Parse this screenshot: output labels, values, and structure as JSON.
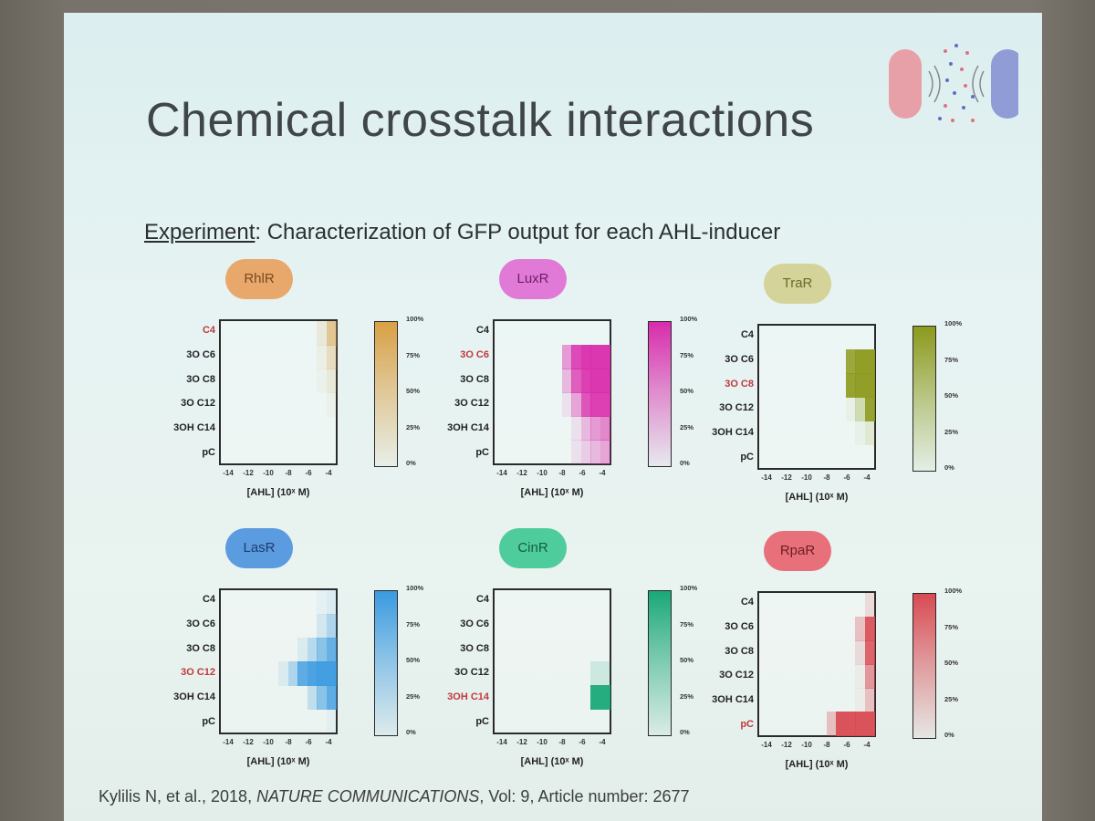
{
  "slide": {
    "title": "Chemical crosstalk interactions",
    "subtitle_prefix": "Experiment",
    "subtitle_rest": ": Characterization of GFP output for each AHL-inducer",
    "citation_authors": "Kylilis N, et al., 2018, ",
    "citation_journal": "NATURE COMMUNICATIONS",
    "citation_rest": ", Vol: 9, Article number: 2677"
  },
  "colors": {
    "highlight_label": "#c0393b",
    "normal_label": "#222222"
  },
  "panels": [
    {
      "receptor": "RhlR",
      "badge_color": "#e9a86b",
      "label_color": "#7a4a1c",
      "heat_color": "#d9a045",
      "highlight_row": 0,
      "rows": [
        "C4",
        "3O C6",
        "3O C8",
        "3O C12",
        "3OH C14",
        "pC"
      ],
      "x_ticks": [
        "-14",
        "-12",
        "-10",
        "-8",
        "-6",
        "-4"
      ],
      "x_label": "[AHL] (10ˣ M)",
      "cb_ticks": [
        "100%",
        "75%",
        "50%",
        "25%",
        "0%"
      ],
      "matrix": [
        [
          0,
          0,
          0,
          0,
          0,
          0,
          0,
          0,
          0,
          0,
          0.15,
          0.55
        ],
        [
          0,
          0,
          0,
          0,
          0,
          0,
          0,
          0,
          0,
          0,
          0.08,
          0.3
        ],
        [
          0,
          0,
          0,
          0,
          0,
          0,
          0,
          0,
          0,
          0,
          0.05,
          0.15
        ],
        [
          0,
          0,
          0,
          0,
          0,
          0,
          0,
          0,
          0,
          0,
          0,
          0.05
        ],
        [
          0,
          0,
          0,
          0,
          0,
          0,
          0,
          0,
          0,
          0,
          0,
          0
        ],
        [
          0,
          0,
          0,
          0,
          0,
          0,
          0,
          0,
          0,
          0,
          0,
          0
        ]
      ]
    },
    {
      "receptor": "LuxR",
      "badge_color": "#e07ad6",
      "label_color": "#6e1e66",
      "heat_color": "#d92cac",
      "highlight_row": 1,
      "rows": [
        "C4",
        "3O C6",
        "3O C8",
        "3O C12",
        "3OH C14",
        "pC"
      ],
      "x_ticks": [
        "-14",
        "-12",
        "-10",
        "-8",
        "-6",
        "-4"
      ],
      "x_label": "[AHL] (10ˣ M)",
      "cb_ticks": [
        "100%",
        "75%",
        "50%",
        "25%",
        "0%"
      ],
      "matrix": [
        [
          0,
          0,
          0,
          0,
          0,
          0,
          0,
          0,
          0,
          0,
          0,
          0
        ],
        [
          0,
          0,
          0,
          0,
          0,
          0,
          0,
          0.45,
          0.85,
          0.95,
          0.95,
          0.95
        ],
        [
          0,
          0,
          0,
          0,
          0,
          0,
          0,
          0.3,
          0.75,
          0.9,
          0.95,
          0.95
        ],
        [
          0,
          0,
          0,
          0,
          0,
          0,
          0,
          0.1,
          0.4,
          0.8,
          0.9,
          0.9
        ],
        [
          0,
          0,
          0,
          0,
          0,
          0,
          0,
          0,
          0.1,
          0.3,
          0.45,
          0.55
        ],
        [
          0,
          0,
          0,
          0,
          0,
          0,
          0,
          0,
          0.1,
          0.2,
          0.3,
          0.4
        ]
      ]
    },
    {
      "receptor": "TraR",
      "badge_color": "#d3d39a",
      "label_color": "#6a6a28",
      "heat_color": "#8c9a1c",
      "highlight_row": 2,
      "rows": [
        "C4",
        "3O C6",
        "3O C8",
        "3O C12",
        "3OH C14",
        "pC"
      ],
      "x_ticks": [
        "-14",
        "-12",
        "-10",
        "-8",
        "-6",
        "-4"
      ],
      "x_label": "[AHL] (10ˣ M)",
      "cb_ticks": [
        "100%",
        "75%",
        "50%",
        "25%",
        "0%"
      ],
      "matrix": [
        [
          0,
          0,
          0,
          0,
          0,
          0,
          0,
          0,
          0,
          0,
          0,
          0
        ],
        [
          0,
          0,
          0,
          0,
          0,
          0,
          0,
          0,
          0,
          0.85,
          0.95,
          0.95
        ],
        [
          0,
          0,
          0,
          0,
          0,
          0,
          0,
          0,
          0,
          0.9,
          0.95,
          0.95
        ],
        [
          0,
          0,
          0,
          0,
          0,
          0,
          0,
          0,
          0,
          0.05,
          0.3,
          0.9
        ],
        [
          0,
          0,
          0,
          0,
          0,
          0,
          0,
          0,
          0,
          0,
          0.05,
          0.15
        ],
        [
          0,
          0,
          0,
          0,
          0,
          0,
          0,
          0,
          0,
          0,
          0,
          0
        ]
      ]
    },
    {
      "receptor": "LasR",
      "badge_color": "#5b9be0",
      "label_color": "#1e3c6e",
      "heat_color": "#3a9ae0",
      "highlight_row": 3,
      "rows": [
        "C4",
        "3O C6",
        "3O C8",
        "3O C12",
        "3OH C14",
        "pC"
      ],
      "x_ticks": [
        "-14",
        "-12",
        "-10",
        "-8",
        "-6",
        "-4"
      ],
      "x_label": "[AHL] (10ˣ M)",
      "cb_ticks": [
        "100%",
        "75%",
        "50%",
        "25%",
        "0%"
      ],
      "matrix": [
        [
          0,
          0,
          0,
          0,
          0,
          0,
          0,
          0,
          0,
          0,
          0.05,
          0.1
        ],
        [
          0,
          0,
          0,
          0,
          0,
          0,
          0,
          0,
          0,
          0,
          0.15,
          0.35
        ],
        [
          0,
          0,
          0,
          0,
          0,
          0,
          0,
          0,
          0.1,
          0.3,
          0.55,
          0.75
        ],
        [
          0,
          0,
          0,
          0,
          0,
          0,
          0.1,
          0.35,
          0.8,
          0.9,
          0.95,
          0.95
        ],
        [
          0,
          0,
          0,
          0,
          0,
          0,
          0,
          0,
          0,
          0.25,
          0.55,
          0.8
        ],
        [
          0,
          0,
          0,
          0,
          0,
          0,
          0,
          0,
          0,
          0,
          0,
          0.05
        ]
      ]
    },
    {
      "receptor": "CinR",
      "badge_color": "#4fcc9c",
      "label_color": "#145e40",
      "heat_color": "#1aa878",
      "highlight_row": 4,
      "rows": [
        "C4",
        "3O C6",
        "3O C8",
        "3O C12",
        "3OH C14",
        "pC"
      ],
      "x_ticks": [
        "-14",
        "-12",
        "-10",
        "-8",
        "-6",
        "-4"
      ],
      "x_label": "[AHL] (10ˣ M)",
      "cb_ticks": [
        "100%",
        "75%",
        "50%",
        "25%",
        "0%"
      ],
      "matrix": [
        [
          0,
          0,
          0,
          0,
          0,
          0,
          0,
          0,
          0,
          0,
          0,
          0
        ],
        [
          0,
          0,
          0,
          0,
          0,
          0,
          0,
          0,
          0,
          0,
          0,
          0
        ],
        [
          0,
          0,
          0,
          0,
          0,
          0,
          0,
          0,
          0,
          0,
          0,
          0
        ],
        [
          0,
          0,
          0,
          0,
          0,
          0,
          0,
          0,
          0,
          0,
          0.15,
          0.15
        ],
        [
          0,
          0,
          0,
          0,
          0,
          0,
          0,
          0,
          0,
          0,
          0.95,
          0.95
        ],
        [
          0,
          0,
          0,
          0,
          0,
          0,
          0,
          0,
          0,
          0,
          0,
          0
        ]
      ]
    },
    {
      "receptor": "RpaR",
      "badge_color": "#e8707a",
      "label_color": "#6e1e24",
      "heat_color": "#d94a52",
      "highlight_row": 5,
      "rows": [
        "C4",
        "3O C6",
        "3O C8",
        "3O C12",
        "3OH C14",
        "pC"
      ],
      "x_ticks": [
        "-14",
        "-12",
        "-10",
        "-8",
        "-6",
        "-4"
      ],
      "x_label": "[AHL] (10ˣ M)",
      "cb_ticks": [
        "100%",
        "75%",
        "50%",
        "25%",
        "0%"
      ],
      "matrix": [
        [
          0,
          0,
          0,
          0,
          0,
          0,
          0,
          0,
          0,
          0,
          0,
          0.15
        ],
        [
          0,
          0,
          0,
          0,
          0,
          0,
          0,
          0,
          0,
          0,
          0.3,
          0.9
        ],
        [
          0,
          0,
          0,
          0,
          0,
          0,
          0,
          0,
          0,
          0,
          0.15,
          0.85
        ],
        [
          0,
          0,
          0,
          0,
          0,
          0,
          0,
          0,
          0,
          0,
          0.05,
          0.55
        ],
        [
          0,
          0,
          0,
          0,
          0,
          0,
          0,
          0,
          0,
          0,
          0.05,
          0.3
        ],
        [
          0,
          0,
          0,
          0,
          0,
          0,
          0,
          0.3,
          0.95,
          0.95,
          0.95,
          0.95
        ]
      ]
    }
  ]
}
